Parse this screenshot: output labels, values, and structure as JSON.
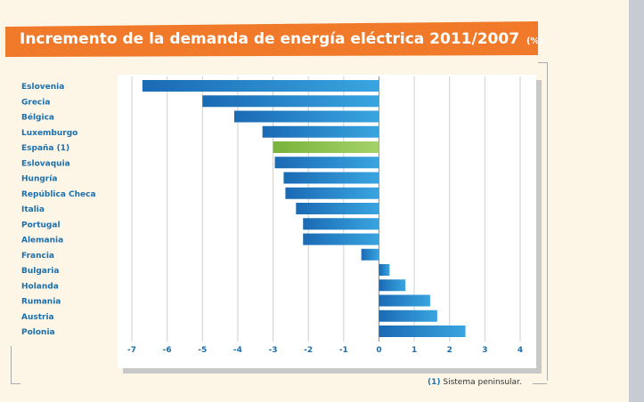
{
  "title": "Incremento de la demanda de energía eléctrica 2011/2007",
  "title_unit": "(%)",
  "footnote": {
    "marker": "(1)",
    "text": "Sistema peninsular."
  },
  "colors": {
    "banner": "#f07a2a",
    "bar": "#1a78c2",
    "highlight_bar": "#8cc04a",
    "label": "#1a6fae"
  },
  "chart_data": {
    "type": "bar",
    "orientation": "horizontal",
    "categories": [
      "Eslovenia",
      "Grecia",
      "Bélgica",
      "Luxemburgo",
      "España (1)",
      "Eslovaquia",
      "Hungría",
      "República Checa",
      "Italia",
      "Portugal",
      "Alemania",
      "Francia",
      "Bulgaria",
      "Holanda",
      "Rumania",
      "Austria",
      "Polonia"
    ],
    "values": [
      -6.7,
      -5.0,
      -4.1,
      -3.3,
      -3.0,
      -2.95,
      -2.7,
      -2.65,
      -2.35,
      -2.15,
      -2.15,
      -0.5,
      0.3,
      0.75,
      1.45,
      1.65,
      2.45
    ],
    "highlight": "España (1)",
    "xlim": [
      -7,
      4
    ],
    "xticks": [
      -7,
      -6,
      -5,
      -4,
      -3,
      -2,
      -1,
      0,
      1,
      2,
      3,
      4
    ],
    "grid": true,
    "xlabel": "",
    "ylabel": ""
  }
}
